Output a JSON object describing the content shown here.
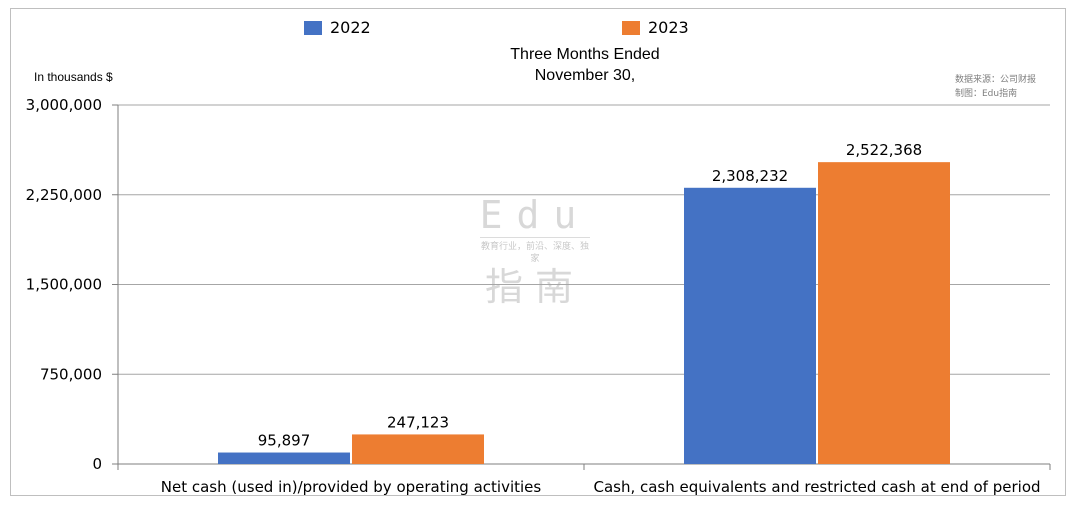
{
  "unit_label": "In thousands $",
  "source_lines": [
    "数据来源：公司财报",
    "制图：Edu指南"
  ],
  "watermark": {
    "top": "Edu",
    "middle": "教育行业，前沿、深度、独家",
    "bottom": "指南"
  },
  "chart_data": {
    "type": "bar",
    "title": "Three Months Ended\nNovember 30,",
    "title_lines": [
      "Three Months Ended",
      "November 30,"
    ],
    "xlabel": "",
    "ylabel": "",
    "ylim": [
      0,
      3000000
    ],
    "yticks": [
      0,
      750000,
      1500000,
      2250000,
      3000000
    ],
    "ytick_labels": [
      "0",
      "750,000",
      "1,500,000",
      "2,250,000",
      "3,000,000"
    ],
    "grid": true,
    "legend_position": "top",
    "categories": [
      "Net cash (used in)/provided by operating activities",
      "Cash, cash equivalents and restricted cash at end of period"
    ],
    "series": [
      {
        "name": "2022",
        "color": "#4472c4",
        "values": [
          95897,
          2308232
        ],
        "labels": [
          "95,897",
          "2,308,232"
        ]
      },
      {
        "name": "2023",
        "color": "#ed7d31",
        "values": [
          247123,
          2522368
        ],
        "labels": [
          "247,123",
          "2,522,368"
        ]
      }
    ]
  }
}
